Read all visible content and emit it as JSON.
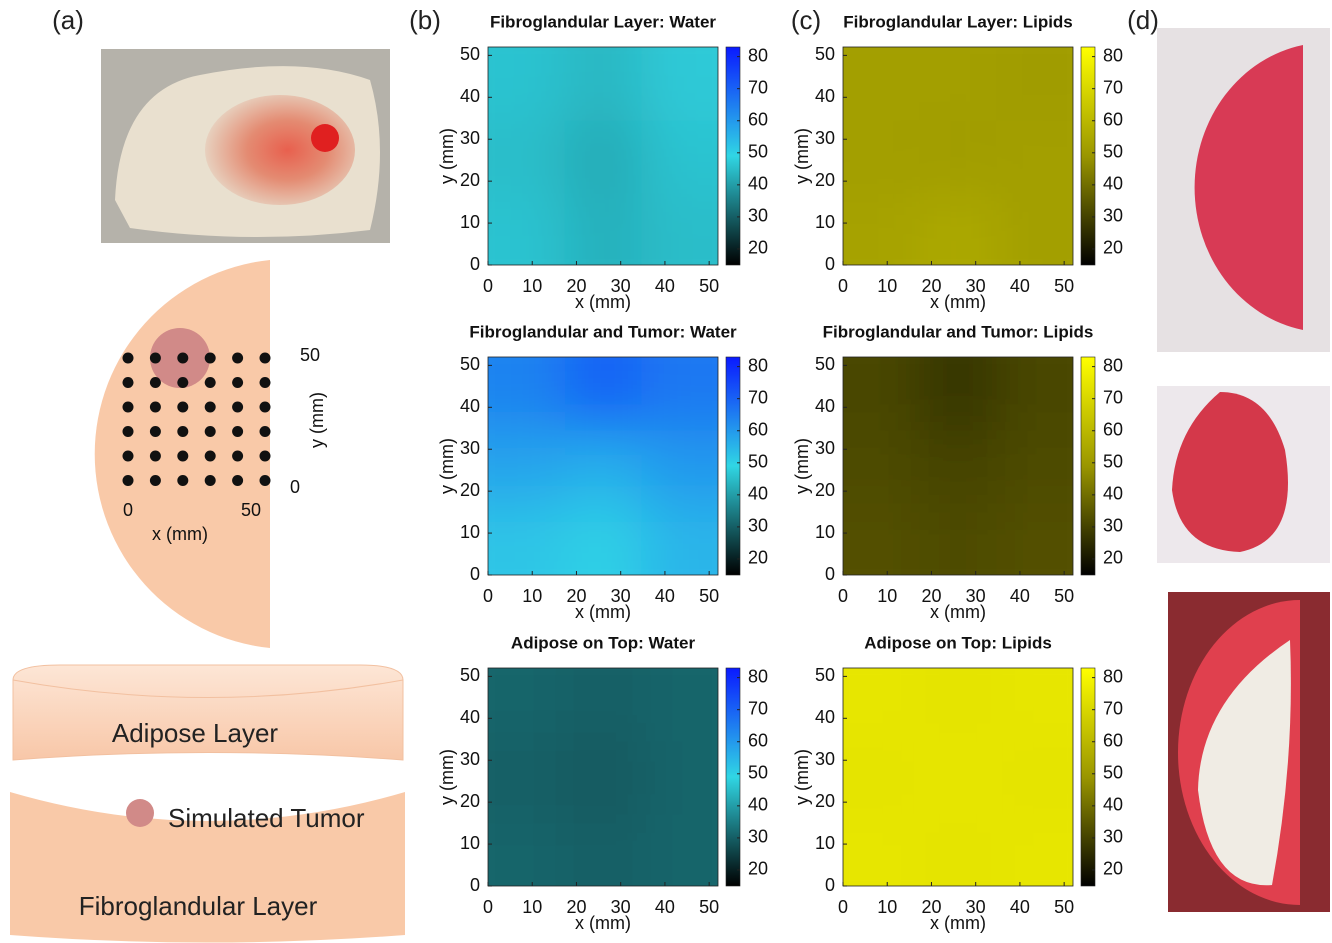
{
  "panel_labels": [
    "(a)",
    "(b)",
    "(c)",
    "(d)"
  ],
  "diagram": {
    "y_ticks": [
      "50",
      "0"
    ],
    "y_label": "y (mm)",
    "x_ticks": [
      "0",
      "50"
    ],
    "x_label": "x (mm)",
    "adipose": "Adipose Layer",
    "tumor": "Simulated Tumor",
    "fibroglandular": "Fibroglandular Layer"
  },
  "chart_data": [
    {
      "type": "heatmap",
      "title": "Fibroglandular Layer: Water",
      "xlabel": "x (mm)",
      "ylabel": "y (mm)",
      "xlim": [
        0,
        52
      ],
      "ylim": [
        0,
        52
      ],
      "xticks": [
        0,
        10,
        20,
        30,
        40,
        50
      ],
      "yticks": [
        0,
        10,
        20,
        30,
        40,
        50
      ],
      "z": [
        [
          46,
          43,
          45
        ],
        [
          45,
          42,
          46
        ],
        [
          46,
          44,
          47
        ]
      ],
      "clim": [
        15,
        83
      ],
      "cticks": [
        20,
        30,
        40,
        50,
        60,
        70,
        80
      ],
      "colormap": [
        "#000000",
        "#30d6e4",
        "#0a1aff"
      ]
    },
    {
      "type": "heatmap",
      "title": "Fibroglandular and Tumor: Water",
      "xlabel": "x (mm)",
      "ylabel": "y (mm)",
      "xlim": [
        0,
        52
      ],
      "ylim": [
        0,
        52
      ],
      "xticks": [
        0,
        10,
        20,
        30,
        40,
        50
      ],
      "yticks": [
        0,
        10,
        20,
        30,
        40,
        50
      ],
      "z": [
        [
          52,
          50,
          55
        ],
        [
          58,
          56,
          60
        ],
        [
          64,
          70,
          66
        ]
      ],
      "clim": [
        15,
        83
      ],
      "cticks": [
        20,
        30,
        40,
        50,
        60,
        70,
        80
      ],
      "colormap": [
        "#000000",
        "#30d6e4",
        "#0a1aff"
      ]
    },
    {
      "type": "heatmap",
      "title": "Adipose on Top: Water",
      "xlabel": "x (mm)",
      "ylabel": "y (mm)",
      "xlim": [
        0,
        52
      ],
      "ylim": [
        0,
        52
      ],
      "xticks": [
        0,
        10,
        20,
        30,
        40,
        50
      ],
      "yticks": [
        0,
        10,
        20,
        30,
        40,
        50
      ],
      "z": [
        [
          31,
          30,
          31
        ],
        [
          30,
          29,
          31
        ],
        [
          31,
          30,
          31
        ]
      ],
      "clim": [
        15,
        83
      ],
      "cticks": [
        20,
        30,
        40,
        50,
        60,
        70,
        80
      ],
      "colormap": [
        "#000000",
        "#30d6e4",
        "#0a1aff"
      ]
    },
    {
      "type": "heatmap",
      "title": "Fibroglandular Layer: Lipids",
      "xlabel": "x (mm)",
      "ylabel": "y (mm)",
      "xlim": [
        0,
        52
      ],
      "ylim": [
        0,
        52
      ],
      "xticks": [
        0,
        10,
        20,
        30,
        40,
        50
      ],
      "yticks": [
        0,
        10,
        20,
        30,
        40,
        50
      ],
      "z": [
        [
          53,
          55,
          52
        ],
        [
          52,
          51,
          52
        ],
        [
          52,
          52,
          51
        ]
      ],
      "clim": [
        15,
        83
      ],
      "cticks": [
        20,
        30,
        40,
        50,
        60,
        70,
        80
      ],
      "colormap": [
        "#000000",
        "#9a9600",
        "#ffff00"
      ]
    },
    {
      "type": "heatmap",
      "title": "Fibroglandular and Tumor: Lipids",
      "xlabel": "x (mm)",
      "ylabel": "y (mm)",
      "xlim": [
        0,
        52
      ],
      "ylim": [
        0,
        52
      ],
      "xticks": [
        0,
        10,
        20,
        30,
        40,
        50
      ],
      "yticks": [
        0,
        10,
        20,
        30,
        40,
        50
      ],
      "z": [
        [
          33,
          32,
          33
        ],
        [
          32,
          30,
          32
        ],
        [
          31,
          27,
          31
        ]
      ],
      "clim": [
        15,
        83
      ],
      "cticks": [
        20,
        30,
        40,
        50,
        60,
        70,
        80
      ],
      "colormap": [
        "#000000",
        "#9a9600",
        "#ffff00"
      ]
    },
    {
      "type": "heatmap",
      "title": "Adipose on Top: Lipids",
      "xlabel": "x (mm)",
      "ylabel": "y (mm)",
      "xlim": [
        0,
        52
      ],
      "ylim": [
        0,
        52
      ],
      "xticks": [
        0,
        10,
        20,
        30,
        40,
        50
      ],
      "yticks": [
        0,
        10,
        20,
        30,
        40,
        50
      ],
      "z": [
        [
          75,
          74,
          75
        ],
        [
          74,
          75,
          74
        ],
        [
          75,
          74,
          75
        ]
      ],
      "clim": [
        15,
        83
      ],
      "cticks": [
        20,
        30,
        40,
        50,
        60,
        70,
        80
      ],
      "colormap": [
        "#000000",
        "#9a9600",
        "#ffff00"
      ]
    }
  ]
}
